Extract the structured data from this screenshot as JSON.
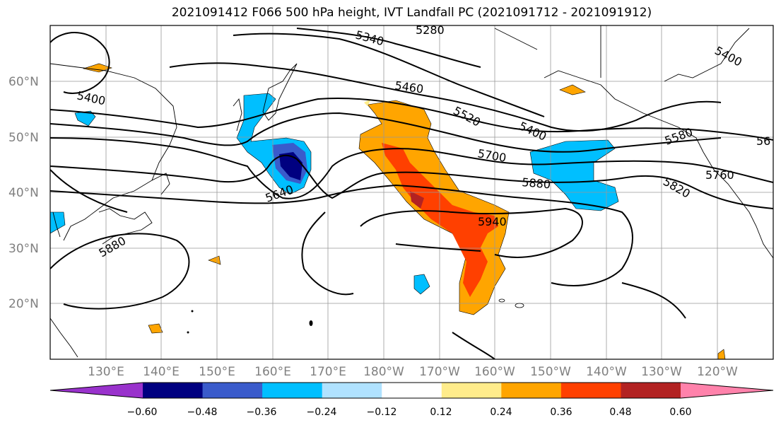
{
  "title": "2021091412 F066 500 hPa height, IVT Landfall PC (2021091712 - 2021091912)",
  "map": {
    "lat_labels": [
      "60°N",
      "50°N",
      "40°N",
      "30°N",
      "20°N"
    ],
    "lon_labels": [
      "130°E",
      "140°E",
      "150°E",
      "160°E",
      "170°E",
      "180°W",
      "170°W",
      "160°W",
      "150°W",
      "140°W",
      "130°W",
      "120°W"
    ],
    "contour_labels": [
      "5340",
      "5280",
      "5400",
      "5400",
      "5460",
      "5520",
      "5400",
      "5580",
      "56",
      "5700",
      "5760",
      "5820",
      "5880",
      "5640",
      "5940",
      "5880"
    ],
    "colors": {
      "land_lines": "#000000",
      "grid": "#999999",
      "height_contours": "#000000"
    }
  },
  "colorbar": {
    "ticks": [
      "−0.60",
      "−0.48",
      "−0.36",
      "−0.24",
      "−0.12",
      "0.12",
      "0.24",
      "0.36",
      "0.48",
      "0.60"
    ],
    "bins": [
      {
        "color": "#9932CC"
      },
      {
        "color": "#000080"
      },
      {
        "color": "#3A5BCB"
      },
      {
        "color": "#00BFFF"
      },
      {
        "color": "#B0E2FF"
      },
      {
        "color": "#FFFFFF"
      },
      {
        "color": "#FFEC8B"
      },
      {
        "color": "#FFA500"
      },
      {
        "color": "#FF4000"
      },
      {
        "color": "#B22222"
      },
      {
        "color": "#FF82AB"
      }
    ]
  }
}
